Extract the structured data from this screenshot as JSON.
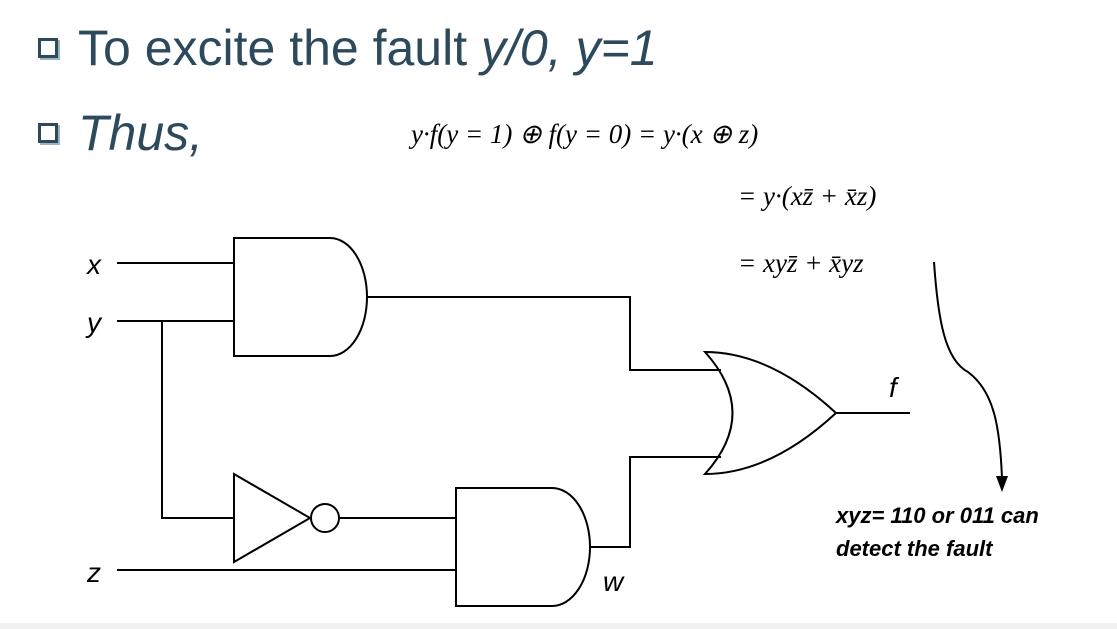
{
  "bullets": [
    {
      "prefix": "To excite the fault ",
      "emph": "y/0, y=1"
    },
    {
      "emph": "Thus,"
    }
  ],
  "equations": {
    "line1": "y·f(y = 1) ⊕ f(y = 0) = y·(x ⊕ z)",
    "line2": "= y·(xz̄ + x̄z)",
    "line3": "= xyz̄ + x̄yz"
  },
  "circuit": {
    "inputs": [
      "x",
      "y",
      "z"
    ],
    "output": "f",
    "internal_signal": "w",
    "gates": [
      "AND",
      "NOT",
      "AND",
      "OR"
    ]
  },
  "note": {
    "line1": "xyz= 110 or 011 can",
    "line2": "detect the fault"
  },
  "colors": {
    "bullet_text": "#2d4a5c",
    "wire": "#000000"
  }
}
